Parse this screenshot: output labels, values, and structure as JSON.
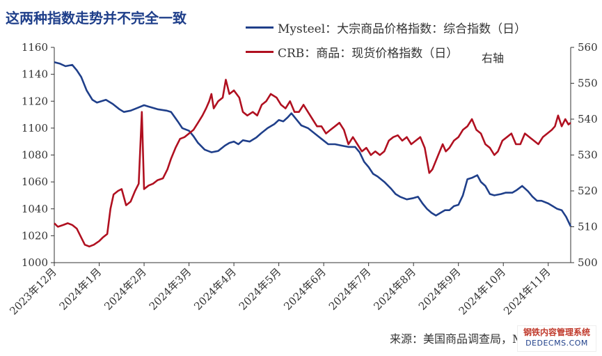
{
  "title": "这两种指数走势并不完全一致",
  "source": "来源：美国商品调查局，Mysteel",
  "watermark": {
    "line1": "钢铁内容管理系统",
    "line2": "DEDECMS.COM"
  },
  "legend_note": "右轴",
  "chart_data": {
    "type": "line",
    "x_ticks": [
      "2023年12月",
      "2024年1月",
      "2024年2月",
      "2024年3月",
      "2024年4月",
      "2024年5月",
      "2024年6月",
      "2024年7月",
      "2024年8月",
      "2024年9月",
      "2024年10月",
      "2024年11月"
    ],
    "y_left": {
      "min": 1000,
      "max": 1160,
      "ticks": [
        1000,
        1020,
        1040,
        1060,
        1080,
        1100,
        1120,
        1140,
        1160
      ]
    },
    "y_right": {
      "min": 500,
      "max": 560,
      "ticks": [
        500,
        510,
        520,
        530,
        540,
        550,
        560
      ]
    },
    "x_range": [
      0,
      11.5
    ],
    "grid": false,
    "legend_position": "top-center",
    "series": [
      {
        "name": "Mysteel：大宗商品价格指数：综合指数（日）",
        "axis": "left",
        "color": "#1f3f8a",
        "points": [
          [
            0.0,
            1149
          ],
          [
            0.12,
            1148
          ],
          [
            0.25,
            1146
          ],
          [
            0.4,
            1147
          ],
          [
            0.5,
            1143
          ],
          [
            0.6,
            1138
          ],
          [
            0.72,
            1128
          ],
          [
            0.85,
            1121
          ],
          [
            0.95,
            1119
          ],
          [
            1.05,
            1120
          ],
          [
            1.15,
            1121
          ],
          [
            1.3,
            1118
          ],
          [
            1.45,
            1114
          ],
          [
            1.55,
            1112
          ],
          [
            1.7,
            1113
          ],
          [
            1.85,
            1115
          ],
          [
            2.0,
            1117
          ],
          [
            2.1,
            1116
          ],
          [
            2.3,
            1114
          ],
          [
            2.5,
            1113
          ],
          [
            2.6,
            1112
          ],
          [
            2.75,
            1105
          ],
          [
            2.85,
            1100
          ],
          [
            3.0,
            1098
          ],
          [
            3.1,
            1094
          ],
          [
            3.2,
            1089
          ],
          [
            3.35,
            1084
          ],
          [
            3.5,
            1082
          ],
          [
            3.65,
            1083
          ],
          [
            3.8,
            1087
          ],
          [
            3.9,
            1089
          ],
          [
            4.0,
            1090
          ],
          [
            4.1,
            1088
          ],
          [
            4.2,
            1091
          ],
          [
            4.35,
            1090
          ],
          [
            4.5,
            1093
          ],
          [
            4.6,
            1096
          ],
          [
            4.75,
            1100
          ],
          [
            4.9,
            1103
          ],
          [
            5.0,
            1106
          ],
          [
            5.1,
            1105
          ],
          [
            5.2,
            1108
          ],
          [
            5.28,
            1111
          ],
          [
            5.38,
            1107
          ],
          [
            5.5,
            1102
          ],
          [
            5.65,
            1100
          ],
          [
            5.8,
            1096
          ],
          [
            5.95,
            1092
          ],
          [
            6.1,
            1088
          ],
          [
            6.25,
            1088
          ],
          [
            6.4,
            1087
          ],
          [
            6.55,
            1086
          ],
          [
            6.7,
            1086
          ],
          [
            6.8,
            1082
          ],
          [
            6.9,
            1075
          ],
          [
            7.0,
            1071
          ],
          [
            7.1,
            1066
          ],
          [
            7.2,
            1064
          ],
          [
            7.35,
            1060
          ],
          [
            7.5,
            1055
          ],
          [
            7.6,
            1051
          ],
          [
            7.7,
            1049
          ],
          [
            7.85,
            1047
          ],
          [
            8.0,
            1048
          ],
          [
            8.1,
            1049
          ],
          [
            8.2,
            1044
          ],
          [
            8.3,
            1040
          ],
          [
            8.4,
            1037
          ],
          [
            8.5,
            1035
          ],
          [
            8.6,
            1037
          ],
          [
            8.7,
            1039
          ],
          [
            8.8,
            1039
          ],
          [
            8.9,
            1042
          ],
          [
            9.0,
            1043
          ],
          [
            9.1,
            1050
          ],
          [
            9.2,
            1062
          ],
          [
            9.3,
            1063
          ],
          [
            9.42,
            1065
          ],
          [
            9.5,
            1060
          ],
          [
            9.6,
            1057
          ],
          [
            9.7,
            1051
          ],
          [
            9.8,
            1050
          ],
          [
            9.95,
            1051
          ],
          [
            10.05,
            1052
          ],
          [
            10.2,
            1052
          ],
          [
            10.3,
            1054
          ],
          [
            10.42,
            1057
          ],
          [
            10.55,
            1053
          ],
          [
            10.65,
            1049
          ],
          [
            10.75,
            1046
          ],
          [
            10.85,
            1046
          ],
          [
            11.0,
            1044
          ],
          [
            11.1,
            1042
          ],
          [
            11.2,
            1040
          ],
          [
            11.3,
            1039
          ],
          [
            11.4,
            1034
          ],
          [
            11.5,
            1027
          ]
        ]
      },
      {
        "name": "CRB：商品：现货价格指数（日）",
        "axis": "right",
        "color": "#b01020",
        "points": [
          [
            0.0,
            511
          ],
          [
            0.08,
            510
          ],
          [
            0.2,
            510.5
          ],
          [
            0.3,
            511
          ],
          [
            0.4,
            510.5
          ],
          [
            0.5,
            509.5
          ],
          [
            0.6,
            507
          ],
          [
            0.68,
            505
          ],
          [
            0.78,
            504.5
          ],
          [
            0.88,
            505
          ],
          [
            1.0,
            506
          ],
          [
            1.08,
            507
          ],
          [
            1.18,
            508
          ],
          [
            1.25,
            515
          ],
          [
            1.32,
            519
          ],
          [
            1.42,
            520
          ],
          [
            1.5,
            520.5
          ],
          [
            1.6,
            516
          ],
          [
            1.7,
            517
          ],
          [
            1.8,
            520
          ],
          [
            1.88,
            522
          ],
          [
            1.95,
            542
          ],
          [
            2.0,
            520.5
          ],
          [
            2.1,
            521.5
          ],
          [
            2.2,
            522
          ],
          [
            2.3,
            523
          ],
          [
            2.42,
            523.5
          ],
          [
            2.52,
            526
          ],
          [
            2.6,
            529
          ],
          [
            2.7,
            532
          ],
          [
            2.8,
            534.5
          ],
          [
            2.9,
            535
          ],
          [
            3.0,
            536
          ],
          [
            3.1,
            537
          ],
          [
            3.2,
            539
          ],
          [
            3.3,
            541
          ],
          [
            3.38,
            543
          ],
          [
            3.45,
            545
          ],
          [
            3.5,
            547
          ],
          [
            3.55,
            543
          ],
          [
            3.65,
            545
          ],
          [
            3.75,
            546
          ],
          [
            3.82,
            551
          ],
          [
            3.9,
            547
          ],
          [
            4.0,
            548
          ],
          [
            4.12,
            546
          ],
          [
            4.2,
            542
          ],
          [
            4.3,
            541
          ],
          [
            4.42,
            542
          ],
          [
            4.52,
            541
          ],
          [
            4.62,
            544
          ],
          [
            4.72,
            545
          ],
          [
            4.82,
            547
          ],
          [
            4.95,
            546
          ],
          [
            5.05,
            544
          ],
          [
            5.15,
            543
          ],
          [
            5.25,
            545
          ],
          [
            5.35,
            542
          ],
          [
            5.45,
            542
          ],
          [
            5.55,
            544
          ],
          [
            5.65,
            542
          ],
          [
            5.75,
            540
          ],
          [
            5.85,
            538
          ],
          [
            5.95,
            538
          ],
          [
            6.05,
            536
          ],
          [
            6.15,
            537
          ],
          [
            6.25,
            538
          ],
          [
            6.35,
            539
          ],
          [
            6.45,
            537
          ],
          [
            6.55,
            533
          ],
          [
            6.65,
            535
          ],
          [
            6.75,
            533
          ],
          [
            6.85,
            531
          ],
          [
            6.95,
            532
          ],
          [
            7.05,
            530
          ],
          [
            7.15,
            531
          ],
          [
            7.25,
            530
          ],
          [
            7.35,
            531
          ],
          [
            7.45,
            534
          ],
          [
            7.55,
            535
          ],
          [
            7.65,
            535.5
          ],
          [
            7.75,
            534
          ],
          [
            7.85,
            535
          ],
          [
            7.95,
            533
          ],
          [
            8.05,
            534
          ],
          [
            8.15,
            535
          ],
          [
            8.25,
            532
          ],
          [
            8.35,
            525
          ],
          [
            8.42,
            526
          ],
          [
            8.55,
            530
          ],
          [
            8.65,
            533
          ],
          [
            8.72,
            531
          ],
          [
            8.8,
            532
          ],
          [
            8.9,
            534
          ],
          [
            9.0,
            535
          ],
          [
            9.1,
            537
          ],
          [
            9.2,
            538
          ],
          [
            9.3,
            540
          ],
          [
            9.4,
            537
          ],
          [
            9.5,
            536
          ],
          [
            9.6,
            533
          ],
          [
            9.7,
            532
          ],
          [
            9.8,
            530
          ],
          [
            9.88,
            531
          ],
          [
            9.98,
            534
          ],
          [
            10.08,
            535
          ],
          [
            10.18,
            536
          ],
          [
            10.28,
            533
          ],
          [
            10.38,
            533
          ],
          [
            10.48,
            536
          ],
          [
            10.58,
            535
          ],
          [
            10.68,
            534
          ],
          [
            10.78,
            533
          ],
          [
            10.88,
            535
          ],
          [
            10.98,
            536
          ],
          [
            11.08,
            537
          ],
          [
            11.15,
            538
          ],
          [
            11.22,
            541
          ],
          [
            11.3,
            538
          ],
          [
            11.38,
            540
          ],
          [
            11.45,
            538.5
          ],
          [
            11.5,
            539
          ]
        ]
      }
    ]
  }
}
